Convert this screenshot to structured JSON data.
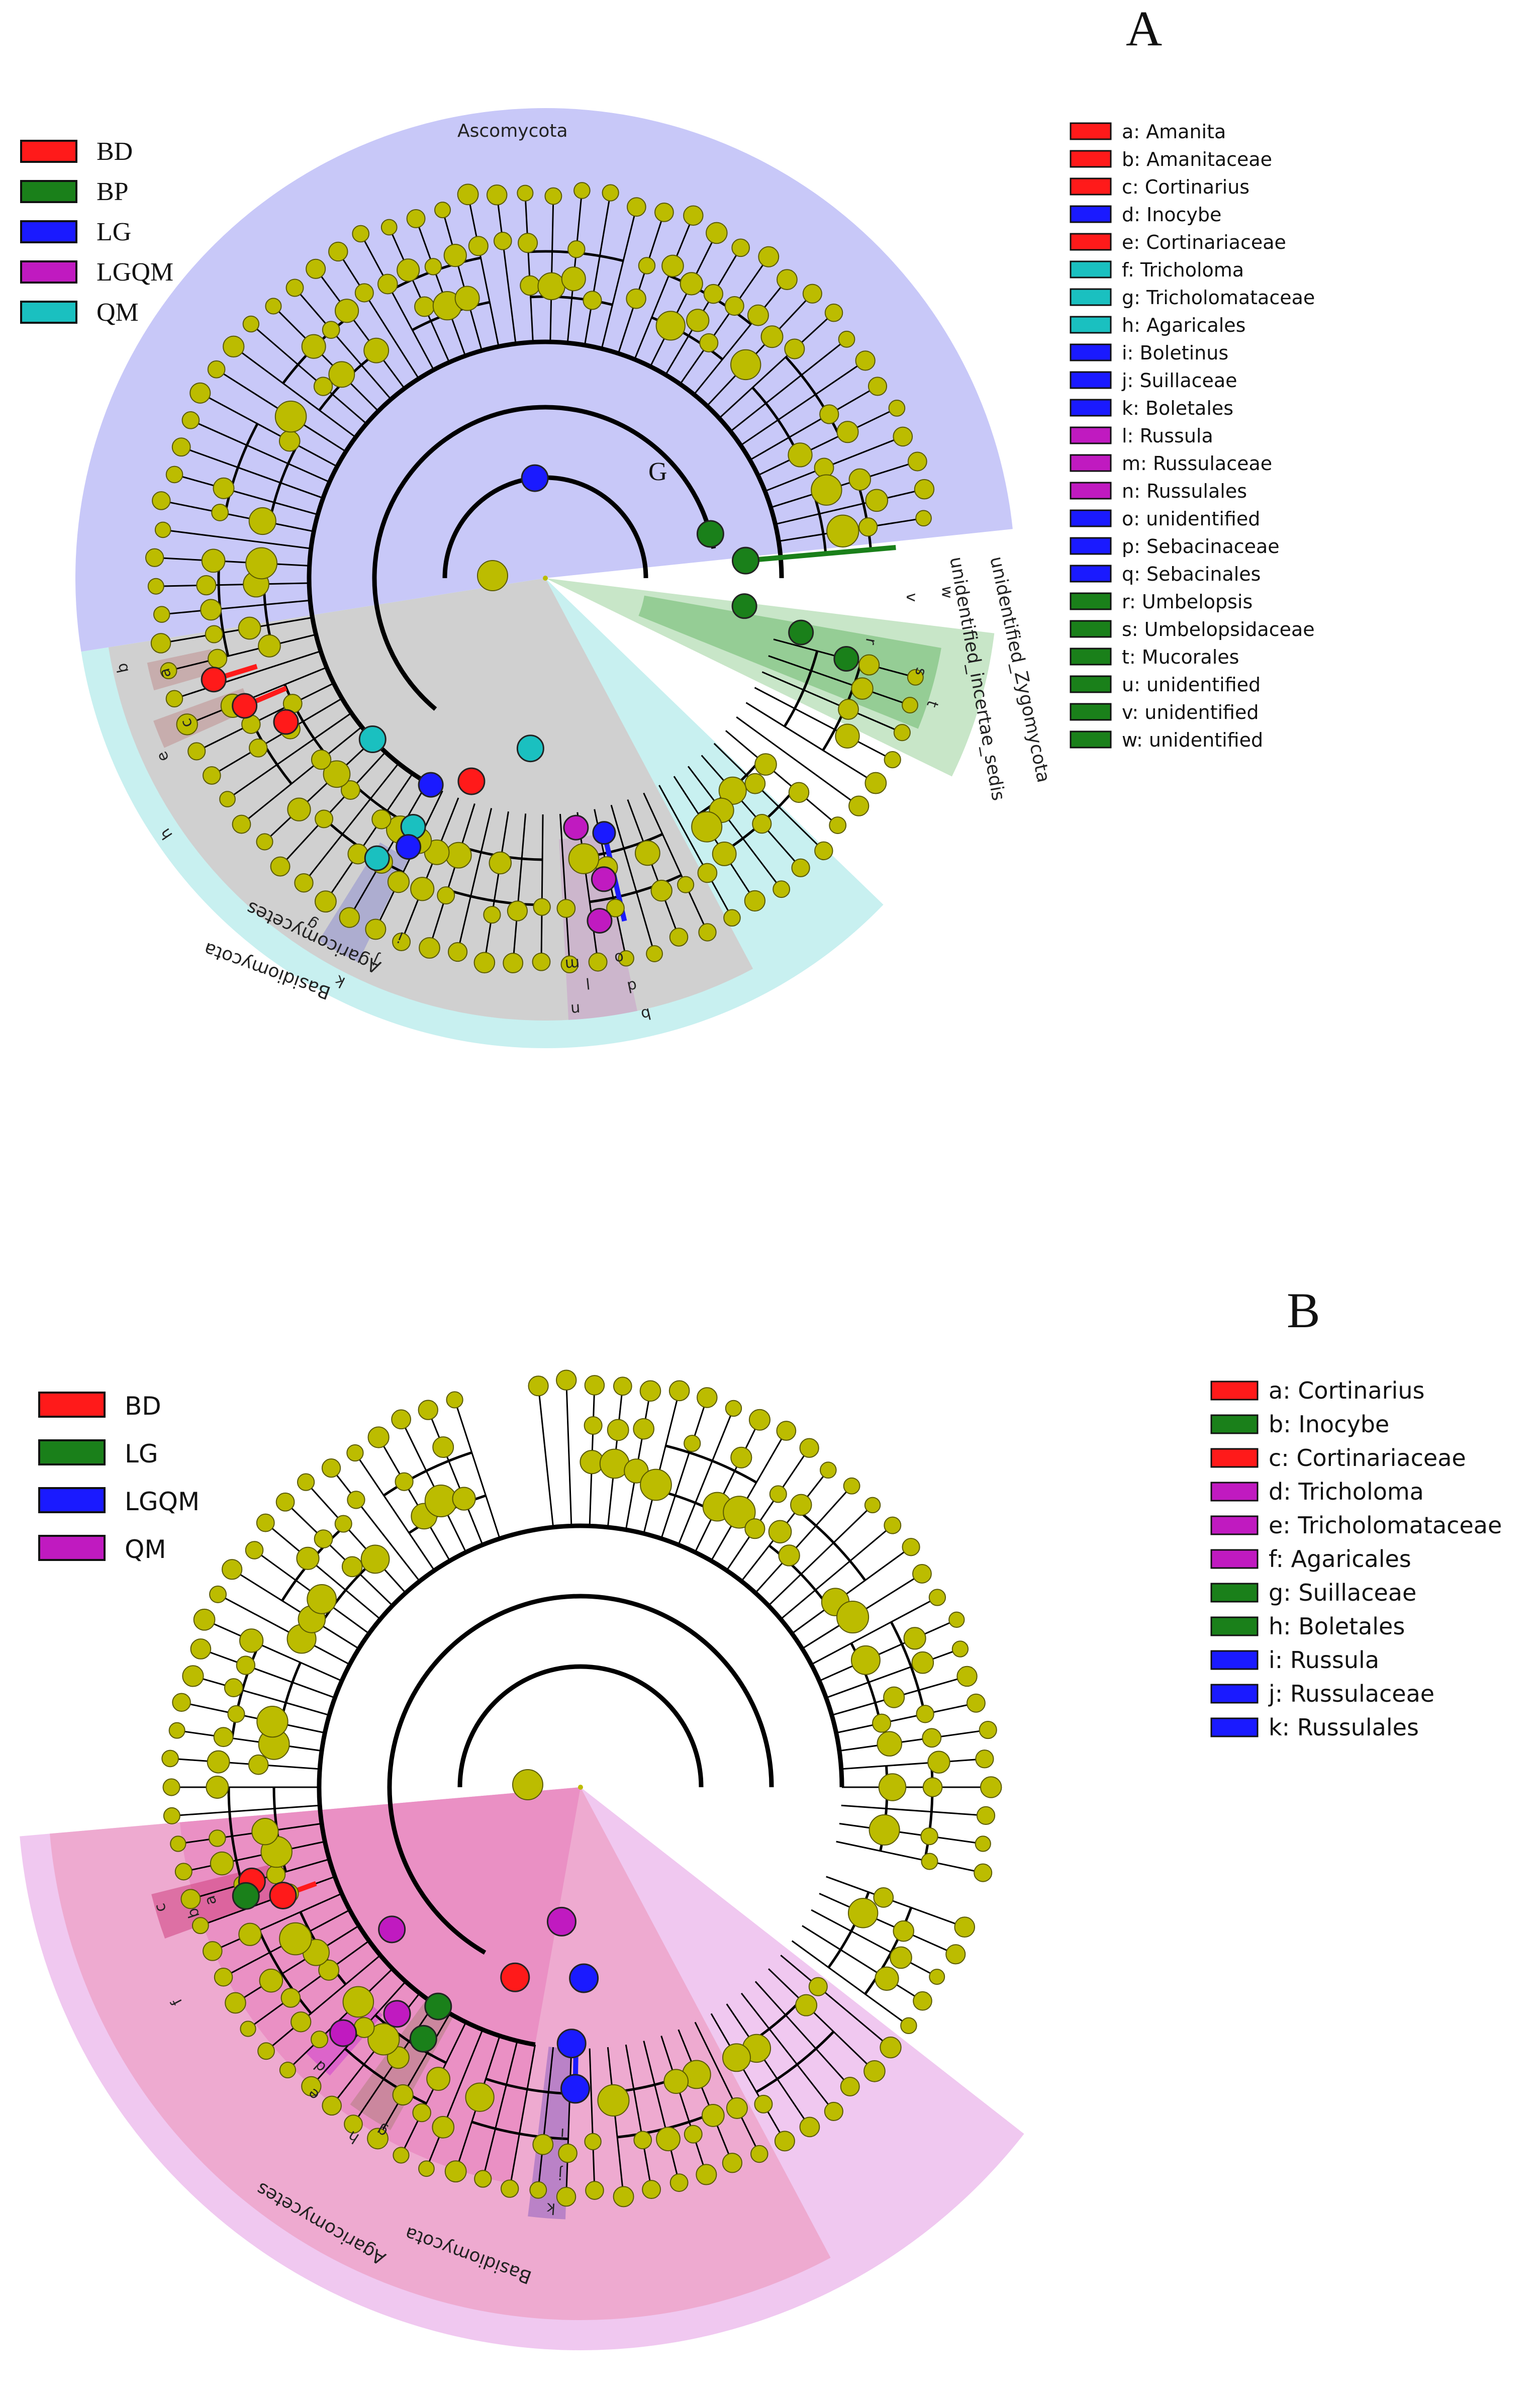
{
  "panels": [
    {
      "id": "A",
      "letter": "A",
      "group_legend": [
        {
          "label": "BD",
          "color": "#ff1a1a"
        },
        {
          "label": "BP",
          "color": "#1a801a"
        },
        {
          "label": "LG",
          "color": "#1a1aff"
        },
        {
          "label": "LGQM",
          "color": "#c01ac0"
        },
        {
          "label": "QM",
          "color": "#1ac0c0"
        }
      ],
      "taxa_legend": [
        {
          "label": "a: Amanita",
          "color": "#ff1a1a"
        },
        {
          "label": "b: Amanitaceae",
          "color": "#ff1a1a"
        },
        {
          "label": "c: Cortinarius",
          "color": "#ff1a1a"
        },
        {
          "label": "d: Inocybe",
          "color": "#1a1aff"
        },
        {
          "label": "e: Cortinariaceae",
          "color": "#ff1a1a"
        },
        {
          "label": "f: Tricholoma",
          "color": "#1ac0c0"
        },
        {
          "label": "g: Tricholomataceae",
          "color": "#1ac0c0"
        },
        {
          "label": "h: Agaricales",
          "color": "#1ac0c0"
        },
        {
          "label": "i: Boletinus",
          "color": "#1a1aff"
        },
        {
          "label": "j: Suillaceae",
          "color": "#1a1aff"
        },
        {
          "label": "k: Boletales",
          "color": "#1a1aff"
        },
        {
          "label": "l: Russula",
          "color": "#c01ac0"
        },
        {
          "label": "m: Russulaceae",
          "color": "#c01ac0"
        },
        {
          "label": "n: Russulales",
          "color": "#c01ac0"
        },
        {
          "label": "o: unidentified",
          "color": "#1a1aff"
        },
        {
          "label": "p: Sebacinaceae",
          "color": "#1a1aff"
        },
        {
          "label": "q: Sebacinales",
          "color": "#1a1aff"
        },
        {
          "label": "r: Umbelopsis",
          "color": "#1a801a"
        },
        {
          "label": "s: Umbelopsidaceae",
          "color": "#1a801a"
        },
        {
          "label": "t: Mucorales",
          "color": "#1a801a"
        },
        {
          "label": "u: unidentified",
          "color": "#1a801a"
        },
        {
          "label": "v: unidentified",
          "color": "#1a801a"
        },
        {
          "label": "w: unidentified",
          "color": "#1a801a"
        }
      ],
      "sector_labels": {
        "ascomycota": "Ascomycota",
        "basidiomycota": "Basidiomycota",
        "agaricomycetes": "Agaricomycetes",
        "zygomycota": "unidentified_Zygomycota",
        "incertae": "unidentified_incertae_sedis",
        "g_marker": "G"
      },
      "marker_letters": [
        "a",
        "b",
        "c",
        "d",
        "e",
        "h",
        "g",
        "k",
        "i",
        "j",
        "l",
        "m",
        "n",
        "o",
        "p",
        "q",
        "r",
        "s",
        "t",
        "u",
        "v",
        "w"
      ]
    },
    {
      "id": "B",
      "letter": "B",
      "group_legend": [
        {
          "label": "BD",
          "color": "#ff1a1a"
        },
        {
          "label": "LG",
          "color": "#1a801a"
        },
        {
          "label": "LGQM",
          "color": "#1a1aff"
        },
        {
          "label": "QM",
          "color": "#c01ac0"
        }
      ],
      "taxa_legend": [
        {
          "label": "a: Cortinarius",
          "color": "#ff1a1a"
        },
        {
          "label": "b: Inocybe",
          "color": "#1a801a"
        },
        {
          "label": "c: Cortinariaceae",
          "color": "#ff1a1a"
        },
        {
          "label": "d: Tricholoma",
          "color": "#c01ac0"
        },
        {
          "label": "e: Tricholomataceae",
          "color": "#c01ac0"
        },
        {
          "label": "f: Agaricales",
          "color": "#c01ac0"
        },
        {
          "label": "g: Suillaceae",
          "color": "#1a801a"
        },
        {
          "label": "h: Boletales",
          "color": "#1a801a"
        },
        {
          "label": "i: Russula",
          "color": "#1a1aff"
        },
        {
          "label": "j: Russulaceae",
          "color": "#1a1aff"
        },
        {
          "label": "k: Russulales",
          "color": "#1a1aff"
        }
      ],
      "sector_labels": {
        "basidiomycota": "Basidiomycota",
        "agaricomycetes": "Agaricomycetes"
      },
      "marker_letters": [
        "a",
        "b",
        "c",
        "d",
        "e",
        "f",
        "g",
        "h",
        "i",
        "j",
        "k"
      ]
    }
  ],
  "colors": {
    "node": "#bcbc00",
    "node_stroke": "#5a5a00",
    "edge": "#000000",
    "ascomycota_bg": "#c8c8f8",
    "basidiomycota_bg": "#c8f0f0",
    "agaricomycetes_bg": "#d0d0d0",
    "zygomycota_bg": "#c8e6c8",
    "qm_pink_outer": "#f0c8f0",
    "qm_pink_mid": "#eeaad0",
    "qm_pink_inner": "#e88ac0"
  }
}
